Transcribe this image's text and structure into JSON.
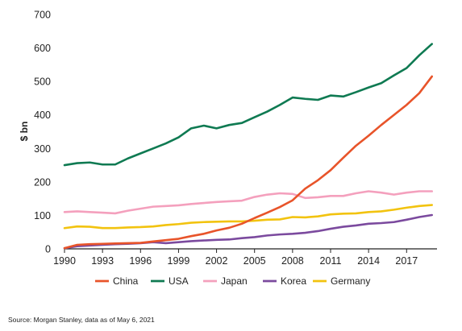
{
  "chart_data": {
    "type": "line",
    "title": "",
    "xlabel": "",
    "ylabel": "$ bn",
    "x": [
      1990,
      1991,
      1992,
      1993,
      1994,
      1995,
      1996,
      1997,
      1998,
      1999,
      2000,
      2001,
      2002,
      2003,
      2004,
      2005,
      2006,
      2007,
      2008,
      2009,
      2010,
      2011,
      2012,
      2013,
      2014,
      2015,
      2016,
      2017,
      2018,
      2019
    ],
    "xticks": [
      "1990",
      "1993",
      "1996",
      "1999",
      "2002",
      "2005",
      "2008",
      "2011",
      "2014",
      "2017"
    ],
    "xlim": [
      1990,
      2019.4
    ],
    "ylim": [
      0,
      700
    ],
    "yticks": [
      "0",
      "100",
      "200",
      "300",
      "400",
      "500",
      "600",
      "700"
    ],
    "grid": false,
    "legend_position": "bottom",
    "series": [
      {
        "name": "China",
        "color": "#e8542a",
        "values": [
          2,
          12,
          14,
          15,
          16,
          17,
          18,
          22,
          26,
          30,
          38,
          45,
          55,
          63,
          75,
          92,
          108,
          125,
          145,
          180,
          205,
          235,
          272,
          308,
          338,
          370,
          400,
          430,
          465,
          515
        ]
      },
      {
        "name": "USA",
        "color": "#0f7a52",
        "values": [
          250,
          256,
          258,
          252,
          252,
          270,
          285,
          300,
          315,
          333,
          360,
          368,
          360,
          370,
          376,
          393,
          410,
          430,
          452,
          448,
          445,
          458,
          455,
          468,
          482,
          495,
          518,
          540,
          578,
          612
        ]
      },
      {
        "name": "Japan",
        "color": "#f4a0bd",
        "values": [
          110,
          112,
          110,
          108,
          106,
          114,
          120,
          126,
          128,
          130,
          134,
          137,
          140,
          142,
          144,
          155,
          162,
          166,
          164,
          152,
          154,
          158,
          158,
          166,
          172,
          168,
          162,
          168,
          172,
          172
        ]
      },
      {
        "name": "Korea",
        "color": "#7b4a9e",
        "values": [
          2,
          8,
          10,
          12,
          14,
          15,
          17,
          20,
          17,
          20,
          23,
          25,
          27,
          28,
          32,
          35,
          40,
          43,
          45,
          48,
          53,
          60,
          66,
          70,
          75,
          77,
          80,
          87,
          95,
          101
        ]
      },
      {
        "name": "Germany",
        "color": "#f2c30f",
        "values": [
          62,
          67,
          66,
          62,
          62,
          64,
          65,
          67,
          71,
          74,
          78,
          80,
          81,
          82,
          82,
          84,
          87,
          88,
          95,
          94,
          97,
          103,
          105,
          106,
          110,
          112,
          117,
          123,
          128,
          131
        ]
      }
    ]
  },
  "source": "Source: Morgan Stanley, data as of May 6, 2021"
}
